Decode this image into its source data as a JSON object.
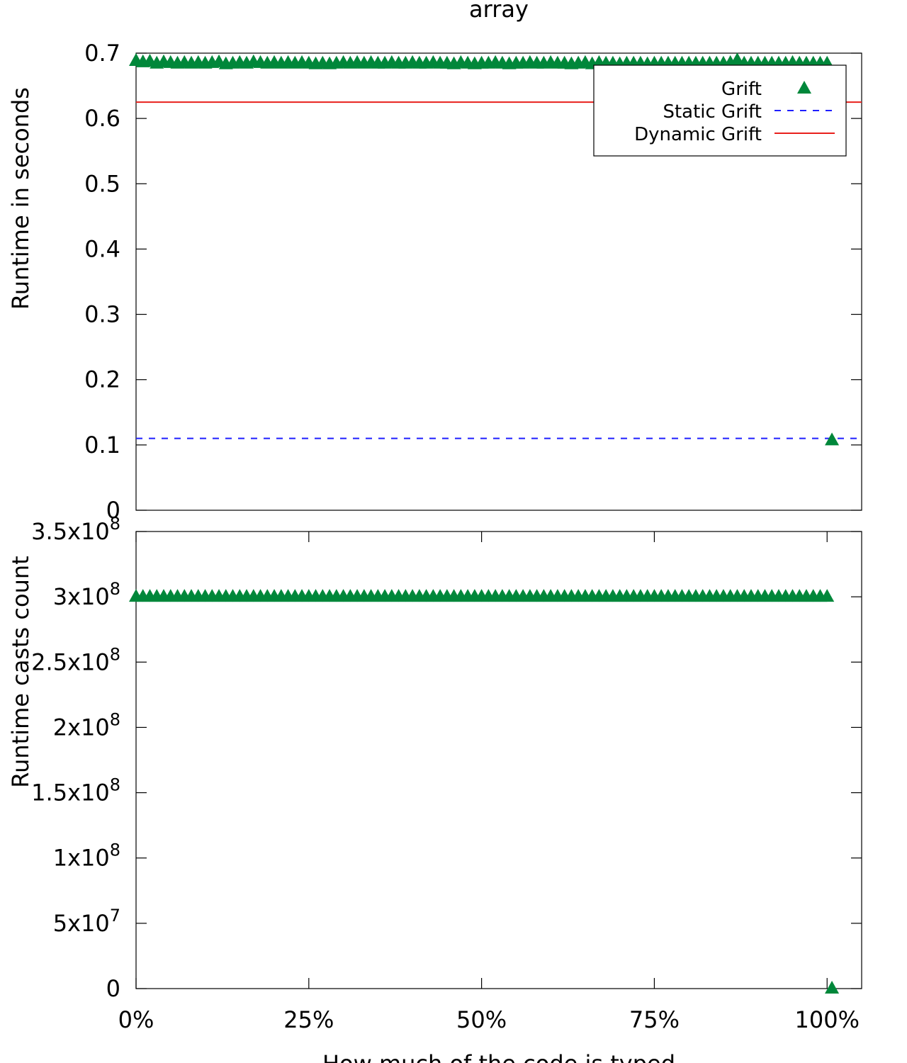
{
  "chart_data": [
    {
      "type": "scatter",
      "title": "array",
      "xlabel": "",
      "ylabel": "Runtime in seconds",
      "xlim": [
        0,
        105
      ],
      "ylim": [
        0,
        0.7
      ],
      "yticks": [
        0,
        0.1,
        0.2,
        0.3,
        0.4,
        0.5,
        0.6,
        0.7
      ],
      "ytick_labels": [
        "0",
        "0.1",
        "0.2",
        "0.3",
        "0.4",
        "0.5",
        "0.6",
        "0.7"
      ],
      "legend": {
        "position": "top-right",
        "entries": [
          {
            "label": "Grift",
            "style": "triangle",
            "color": "#00873a"
          },
          {
            "label": "Static Grift",
            "style": "dashed",
            "color": "#1f1fff"
          },
          {
            "label": "Dynamic Grift",
            "style": "solid",
            "color": "#e8201c"
          }
        ]
      },
      "reference_lines": [
        {
          "name": "Static Grift",
          "y": 0.11,
          "color": "#1f1fff",
          "style": "dashed"
        },
        {
          "name": "Dynamic Grift",
          "y": 0.625,
          "color": "#e8201c",
          "style": "solid"
        }
      ],
      "series": [
        {
          "name": "Grift",
          "color": "#00873a",
          "marker": "triangle",
          "points": [
            [
              0,
              0.688
            ],
            [
              1,
              0.686
            ],
            [
              2,
              0.687
            ],
            [
              3,
              0.684
            ],
            [
              4,
              0.686
            ],
            [
              5,
              0.685
            ],
            [
              6,
              0.684
            ],
            [
              7,
              0.685
            ],
            [
              8,
              0.684
            ],
            [
              9,
              0.685
            ],
            [
              10,
              0.684
            ],
            [
              11,
              0.685
            ],
            [
              12,
              0.686
            ],
            [
              13,
              0.683
            ],
            [
              14,
              0.684
            ],
            [
              15,
              0.685
            ],
            [
              16,
              0.684
            ],
            [
              17,
              0.686
            ],
            [
              18,
              0.685
            ],
            [
              19,
              0.684
            ],
            [
              20,
              0.685
            ],
            [
              21,
              0.684
            ],
            [
              22,
              0.685
            ],
            [
              23,
              0.684
            ],
            [
              24,
              0.685
            ],
            [
              25,
              0.684
            ],
            [
              26,
              0.683
            ],
            [
              27,
              0.684
            ],
            [
              28,
              0.683
            ],
            [
              29,
              0.684
            ],
            [
              30,
              0.685
            ],
            [
              31,
              0.684
            ],
            [
              32,
              0.685
            ],
            [
              33,
              0.684
            ],
            [
              34,
              0.685
            ],
            [
              35,
              0.684
            ],
            [
              36,
              0.684
            ],
            [
              37,
              0.685
            ],
            [
              38,
              0.684
            ],
            [
              39,
              0.684
            ],
            [
              40,
              0.685
            ],
            [
              41,
              0.684
            ],
            [
              42,
              0.684
            ],
            [
              43,
              0.685
            ],
            [
              44,
              0.684
            ],
            [
              45,
              0.684
            ],
            [
              46,
              0.683
            ],
            [
              47,
              0.685
            ],
            [
              48,
              0.684
            ],
            [
              49,
              0.683
            ],
            [
              50,
              0.684
            ],
            [
              51,
              0.684
            ],
            [
              52,
              0.685
            ],
            [
              53,
              0.684
            ],
            [
              54,
              0.683
            ],
            [
              55,
              0.684
            ],
            [
              56,
              0.684
            ],
            [
              57,
              0.685
            ],
            [
              58,
              0.684
            ],
            [
              59,
              0.684
            ],
            [
              60,
              0.685
            ],
            [
              61,
              0.684
            ],
            [
              62,
              0.684
            ],
            [
              63,
              0.683
            ],
            [
              64,
              0.684
            ],
            [
              65,
              0.685
            ],
            [
              66,
              0.683
            ],
            [
              67,
              0.685
            ],
            [
              68,
              0.684
            ],
            [
              69,
              0.684
            ],
            [
              70,
              0.683
            ],
            [
              71,
              0.684
            ],
            [
              72,
              0.684
            ],
            [
              73,
              0.684
            ],
            [
              74,
              0.683
            ],
            [
              75,
              0.684
            ],
            [
              76,
              0.684
            ],
            [
              77,
              0.684
            ],
            [
              78,
              0.684
            ],
            [
              79,
              0.684
            ],
            [
              80,
              0.684
            ],
            [
              81,
              0.684
            ],
            [
              82,
              0.684
            ],
            [
              83,
              0.684
            ],
            [
              84,
              0.684
            ],
            [
              85,
              0.684
            ],
            [
              86,
              0.685
            ],
            [
              87,
              0.689
            ],
            [
              88,
              0.684
            ],
            [
              89,
              0.684
            ],
            [
              90,
              0.684
            ],
            [
              91,
              0.684
            ],
            [
              92,
              0.684
            ],
            [
              93,
              0.684
            ],
            [
              94,
              0.684
            ],
            [
              95,
              0.685
            ],
            [
              96,
              0.684
            ],
            [
              97,
              0.684
            ],
            [
              98,
              0.684
            ],
            [
              99,
              0.684
            ],
            [
              100,
              0.684
            ],
            [
              100.7,
              0.107
            ]
          ]
        }
      ]
    },
    {
      "type": "scatter",
      "title": "",
      "xlabel": "How much of the code is typed",
      "ylabel": "Runtime casts count",
      "xlim": [
        0,
        105
      ],
      "ylim": [
        0,
        350000000
      ],
      "xticks": [
        0,
        25,
        50,
        75,
        100
      ],
      "xtick_labels": [
        "0%",
        "25%",
        "50%",
        "75%",
        "100%"
      ],
      "yticks": [
        0,
        50000000,
        100000000,
        150000000,
        200000000,
        250000000,
        300000000,
        350000000
      ],
      "ytick_labels": [
        {
          "mant": "0",
          "exp": ""
        },
        {
          "mant": "5x10",
          "exp": "7"
        },
        {
          "mant": "1x10",
          "exp": "8"
        },
        {
          "mant": "1.5x10",
          "exp": "8"
        },
        {
          "mant": "2x10",
          "exp": "8"
        },
        {
          "mant": "2.5x10",
          "exp": "8"
        },
        {
          "mant": "3x10",
          "exp": "8"
        },
        {
          "mant": "3.5x10",
          "exp": "8"
        }
      ],
      "series": [
        {
          "name": "Grift",
          "color": "#00873a",
          "marker": "triangle",
          "constant_y": 300000000,
          "x_from": 0,
          "x_to": 100,
          "x_step": 1,
          "extra_points": [
            [
              100.7,
              0
            ]
          ]
        }
      ]
    }
  ]
}
